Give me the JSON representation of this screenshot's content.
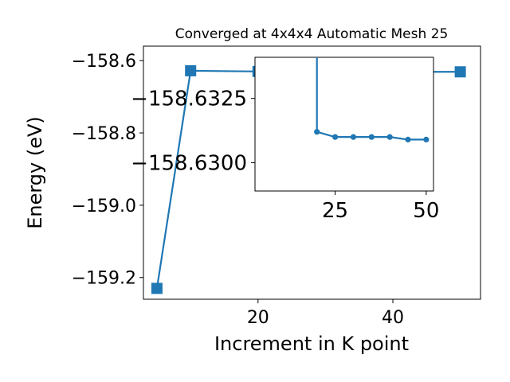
{
  "chart_data": [
    {
      "type": "line",
      "title": "Converged at 4x4x4 Automatic Mesh 25",
      "xlabel": "Increment in K point",
      "ylabel": "Energy (eV)",
      "xlim": [
        3,
        53
      ],
      "ylim": [
        -159.26,
        -158.56
      ],
      "xticks": [
        20,
        40
      ],
      "yticks": [
        -158.6,
        -158.8,
        -159.0,
        -159.2
      ],
      "ytick_labels": [
        "−158.6",
        "−158.8",
        "−159.0",
        "−159.2"
      ],
      "grid": false,
      "marker": "square",
      "color": "#1f77b4",
      "series": [
        {
          "x": [
            5,
            10,
            20,
            25,
            30,
            35,
            40,
            45,
            50
          ],
          "y": [
            -159.23,
            -158.628,
            -158.63,
            -158.63,
            -158.63,
            -158.63,
            -158.63,
            -158.631,
            -158.631
          ]
        }
      ]
    },
    {
      "type": "line",
      "title": "",
      "xlabel": "",
      "ylabel": "",
      "xlim": [
        3,
        52
      ],
      "ylim": [
        -158.6289,
        -158.6341
      ],
      "xticks": [
        25,
        50
      ],
      "yticks": [
        -158.6325,
        -158.63
      ],
      "ytick_labels": [
        "−158.6325",
        "−158.6300"
      ],
      "grid": false,
      "marker": "circle",
      "color": "#1f77b4",
      "series": [
        {
          "x": [
            20,
            20,
            25,
            30,
            35,
            40,
            45,
            50
          ],
          "y": [
            -158.6342,
            -158.6312,
            -158.631,
            -158.631,
            -158.631,
            -158.631,
            -158.6309,
            -158.6309
          ]
        }
      ]
    }
  ]
}
